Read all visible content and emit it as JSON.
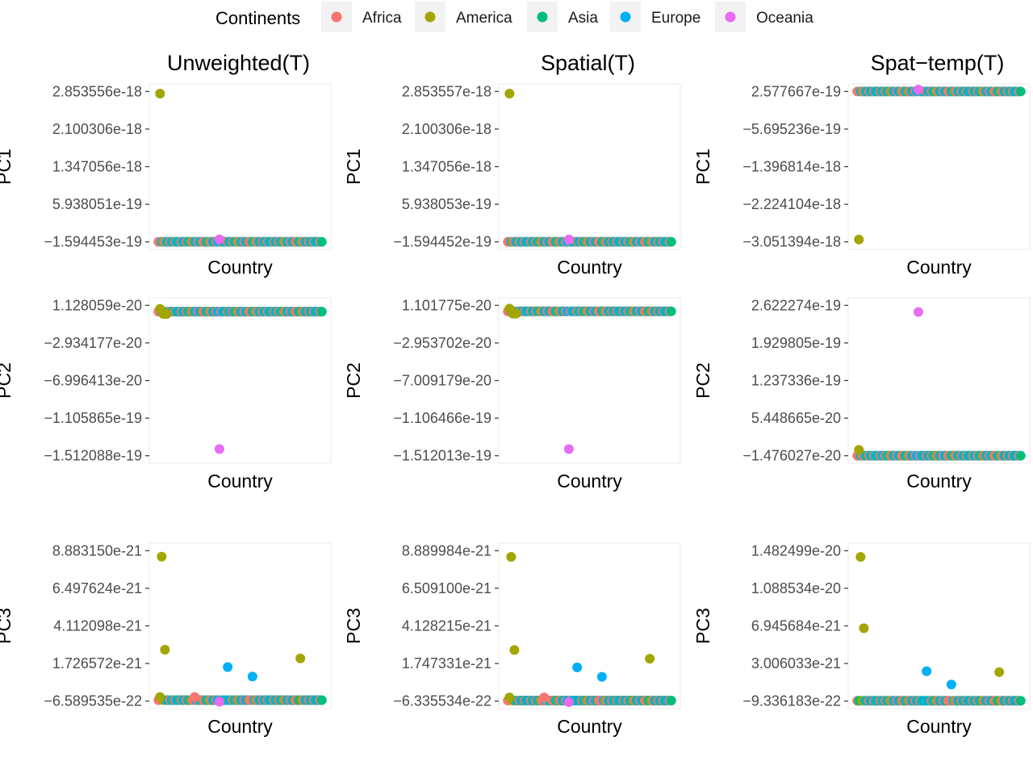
{
  "legend": {
    "title": "Continents",
    "items": [
      {
        "key": "Africa",
        "label": "Africa",
        "color": "#F8766D"
      },
      {
        "key": "America",
        "label": "America",
        "color": "#A3A500"
      },
      {
        "key": "Asia",
        "label": "Asia",
        "color": "#00BF7D"
      },
      {
        "key": "Europe",
        "label": "Europe",
        "color": "#00B0F6"
      },
      {
        "key": "Oceania",
        "label": "Oceania",
        "color": "#E76BF3"
      }
    ]
  },
  "chart_data": [
    {
      "type": "scatter",
      "title": "Unweighted(T)",
      "xlabel": "Country",
      "ylabel": "PC1",
      "ticks": [
        {
          "label": "2.853556e-18",
          "value": 2.853556e-18
        },
        {
          "label": "2.100306e-18",
          "value": 2.100306e-18
        },
        {
          "label": "1.347056e-18",
          "value": 1.347056e-18
        },
        {
          "label": "5.938051e-19",
          "value": 5.938051e-19
        },
        {
          "label": "−1.594453e-19",
          "value": -1.594453e-19
        }
      ],
      "ylim": [
        -1.594453e-19,
        2.853556e-18
      ],
      "baseline": -1.594453e-19,
      "outliers": [
        {
          "x": 1,
          "y": 2.81e-18,
          "continent": "America"
        },
        {
          "x": 37,
          "y": -1.1e-19,
          "continent": "Oceania"
        }
      ]
    },
    {
      "type": "scatter",
      "title": "Spatial(T)",
      "xlabel": "Country",
      "ylabel": "PC1",
      "ticks": [
        {
          "label": "2.853557e-18",
          "value": 2.853557e-18
        },
        {
          "label": "2.100306e-18",
          "value": 2.100306e-18
        },
        {
          "label": "1.347056e-18",
          "value": 1.347056e-18
        },
        {
          "label": "5.938053e-19",
          "value": 5.938053e-19
        },
        {
          "label": "−1.594452e-19",
          "value": -1.594452e-19
        }
      ],
      "ylim": [
        -1.594452e-19,
        2.853557e-18
      ],
      "baseline": -1.594452e-19,
      "outliers": [
        {
          "x": 1,
          "y": 2.81e-18,
          "continent": "America"
        },
        {
          "x": 37,
          "y": -1.1e-19,
          "continent": "Oceania"
        }
      ]
    },
    {
      "type": "scatter",
      "title": "Spat−temp(T)",
      "xlabel": "Country",
      "ylabel": "PC1",
      "ticks": [
        {
          "label": "2.577667e-19",
          "value": 2.577667e-19
        },
        {
          "label": "−5.695236e-19",
          "value": -5.695236e-19
        },
        {
          "label": "−1.396814e-18",
          "value": -1.396814e-18
        },
        {
          "label": "−2.224104e-18",
          "value": -2.224104e-18
        },
        {
          "label": "−3.051394e-18",
          "value": -3.051394e-18
        }
      ],
      "ylim": [
        -3.051394e-18,
        2.577667e-19
      ],
      "baseline": 2.577667e-19,
      "outliers": [
        {
          "x": 1,
          "y": -3e-18,
          "continent": "America"
        },
        {
          "x": 37,
          "y": 3e-19,
          "continent": "Oceania"
        }
      ]
    },
    {
      "type": "scatter",
      "title": "",
      "xlabel": "Country",
      "ylabel": "PC2",
      "ticks": [
        {
          "label": "1.128059e-20",
          "value": 1.128059e-20
        },
        {
          "label": "−2.934177e-20",
          "value": -2.934177e-20
        },
        {
          "label": "−6.996413e-20",
          "value": -6.996413e-20
        },
        {
          "label": "−1.105865e-19",
          "value": -1.105865e-19
        },
        {
          "label": "−1.512088e-19",
          "value": -1.512088e-19
        }
      ],
      "ylim": [
        -1.512088e-19,
        1.128059e-20
      ],
      "baseline": 4.5e-21,
      "outliers": [
        {
          "x": 1,
          "y": 7.5e-21,
          "continent": "America"
        },
        {
          "x": 3,
          "y": 2e-21,
          "continent": "America"
        },
        {
          "x": 5,
          "y": 2e-21,
          "continent": "America"
        },
        {
          "x": 37,
          "y": -1.44e-19,
          "continent": "Oceania"
        }
      ]
    },
    {
      "type": "scatter",
      "title": "",
      "xlabel": "Country",
      "ylabel": "PC2",
      "ticks": [
        {
          "label": "1.101775e-20",
          "value": 1.101775e-20
        },
        {
          "label": "−2.953702e-20",
          "value": -2.953702e-20
        },
        {
          "label": "−7.009179e-20",
          "value": -7.009179e-20
        },
        {
          "label": "−1.106466e-19",
          "value": -1.106466e-19
        },
        {
          "label": "−1.512013e-19",
          "value": -1.512013e-19
        }
      ],
      "ylim": [
        -1.512013e-19,
        1.101775e-20
      ],
      "baseline": 4.5e-21,
      "outliers": [
        {
          "x": 1,
          "y": 7.5e-21,
          "continent": "America"
        },
        {
          "x": 3,
          "y": 2e-21,
          "continent": "America"
        },
        {
          "x": 5,
          "y": 2e-21,
          "continent": "America"
        },
        {
          "x": 37,
          "y": -1.44e-19,
          "continent": "Oceania"
        }
      ]
    },
    {
      "type": "scatter",
      "title": "",
      "xlabel": "Country",
      "ylabel": "PC2",
      "ticks": [
        {
          "label": "2.622274e-19",
          "value": 2.622274e-19
        },
        {
          "label": "1.929805e-19",
          "value": 1.929805e-19
        },
        {
          "label": "1.237336e-19",
          "value": 1.237336e-19
        },
        {
          "label": "5.448665e-20",
          "value": 5.448665e-20
        },
        {
          "label": "−1.476027e-20",
          "value": -1.476027e-20
        }
      ],
      "ylim": [
        -1.476027e-20,
        2.622274e-19
      ],
      "baseline": -1.476027e-20,
      "outliers": [
        {
          "x": 1,
          "y": -4e-21,
          "continent": "America"
        },
        {
          "x": 37,
          "y": 2.5e-19,
          "continent": "Oceania"
        }
      ]
    },
    {
      "type": "scatter",
      "title": "",
      "xlabel": "Country",
      "ylabel": "PC3",
      "ticks": [
        {
          "label": "8.883150e-21",
          "value": 8.88315e-21
        },
        {
          "label": "6.497624e-21",
          "value": 6.497624e-21
        },
        {
          "label": "4.112098e-21",
          "value": 4.112098e-21
        },
        {
          "label": "1.726572e-21",
          "value": 1.726572e-21
        },
        {
          "label": "−6.589535e-22",
          "value": -6.589535e-22
        }
      ],
      "ylim": [
        -6.589535e-22,
        8.88315e-21
      ],
      "baseline": -6e-22,
      "outliers": [
        {
          "x": 2,
          "y": 8.5e-21,
          "continent": "America"
        },
        {
          "x": 4,
          "y": 2.6e-21,
          "continent": "America"
        },
        {
          "x": 1,
          "y": -4e-22,
          "continent": "America"
        },
        {
          "x": 22,
          "y": -4e-22,
          "continent": "Africa"
        },
        {
          "x": 37,
          "y": -7e-22,
          "continent": "Oceania"
        },
        {
          "x": 42,
          "y": 1.5e-21,
          "continent": "Europe"
        },
        {
          "x": 57,
          "y": 9e-22,
          "continent": "Europe"
        },
        {
          "x": 86,
          "y": 2.05e-21,
          "continent": "America"
        }
      ]
    },
    {
      "type": "scatter",
      "title": "",
      "xlabel": "Country",
      "ylabel": "PC3",
      "ticks": [
        {
          "label": "8.889984e-21",
          "value": 8.889984e-21
        },
        {
          "label": "6.509100e-21",
          "value": 6.5091e-21
        },
        {
          "label": "4.128215e-21",
          "value": 4.128215e-21
        },
        {
          "label": "1.747331e-21",
          "value": 1.747331e-21
        },
        {
          "label": "−6.335534e-22",
          "value": -6.335534e-22
        }
      ],
      "ylim": [
        -6.335534e-22,
        8.889984e-21
      ],
      "baseline": -6e-22,
      "outliers": [
        {
          "x": 2,
          "y": 8.5e-21,
          "continent": "America"
        },
        {
          "x": 4,
          "y": 2.6e-21,
          "continent": "America"
        },
        {
          "x": 1,
          "y": -4e-22,
          "continent": "America"
        },
        {
          "x": 22,
          "y": -4e-22,
          "continent": "Africa"
        },
        {
          "x": 37,
          "y": -7e-22,
          "continent": "Oceania"
        },
        {
          "x": 42,
          "y": 1.5e-21,
          "continent": "Europe"
        },
        {
          "x": 57,
          "y": 9e-22,
          "continent": "Europe"
        },
        {
          "x": 86,
          "y": 2.05e-21,
          "continent": "America"
        }
      ]
    },
    {
      "type": "scatter",
      "title": "",
      "xlabel": "Country",
      "ylabel": "PC3",
      "ticks": [
        {
          "label": "1.482499e-20",
          "value": 1.482499e-20
        },
        {
          "label": "1.088534e-20",
          "value": 1.088534e-20
        },
        {
          "label": "6.945684e-21",
          "value": 6.945684e-21
        },
        {
          "label": "3.006033e-21",
          "value": 3.006033e-21
        },
        {
          "label": "−9.336183e-22",
          "value": -9.336183e-22
        }
      ],
      "ylim": [
        -9.336183e-22,
        1.482499e-20
      ],
      "baseline": -9e-22,
      "outliers": [
        {
          "x": 2,
          "y": 1.418e-20,
          "continent": "America"
        },
        {
          "x": 4,
          "y": 6.7e-21,
          "continent": "America"
        },
        {
          "x": 42,
          "y": 2.2e-21,
          "continent": "Europe"
        },
        {
          "x": 57,
          "y": 8e-22,
          "continent": "Europe"
        },
        {
          "x": 86,
          "y": 2.1e-21,
          "continent": "America"
        }
      ]
    }
  ]
}
